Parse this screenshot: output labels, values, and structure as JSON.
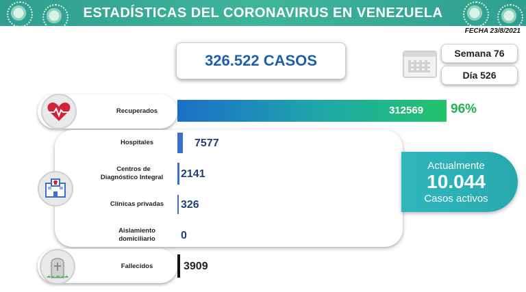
{
  "header": {
    "title": "ESTADÍSTICAS DEL CORONAVIRUS EN VENEZUELA"
  },
  "fecha": "FECHA 23/8/2021",
  "casos": "326.522 CASOS",
  "semana": "Semana 76",
  "dia": "Día 526",
  "recuperados": {
    "label": "Recuperados",
    "value": "312569",
    "percent": "96%"
  },
  "hospitales": {
    "label": "Hospitales",
    "value": "7577"
  },
  "centros": {
    "label_line1": "Centros de",
    "label_line2": "Diagnóstico Integral",
    "value": "2141"
  },
  "clinicas": {
    "label": "Clínicas privadas",
    "value": "326"
  },
  "aislamiento": {
    "label_line1": "Aislamiento",
    "label_line2": "domiciliario",
    "value": "0"
  },
  "activos": {
    "line1": "Actualmente",
    "value": "10.044",
    "line3": "Casos activos"
  },
  "fallecidos": {
    "label": "Fallecidos",
    "value": "3909"
  },
  "icons": {
    "recuperados": "heart-icon",
    "hospital": "hospital-icon",
    "fallecidos": "tombstone-icon",
    "calendar": "calendar-icon",
    "virus": "virus-icon"
  },
  "colors": {
    "header": "#2f9e8f",
    "casos_text": "#1f5fa8",
    "percent": "#23b14d",
    "activos_bg": "#2fb7bd"
  }
}
